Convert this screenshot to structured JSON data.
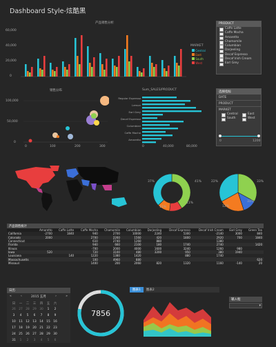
{
  "page": {
    "title": "Dashboard Style-炫酷黑"
  },
  "bar_chart": {
    "title": "产品销售分析",
    "yticks": [
      "60,000",
      "40,000",
      "20,000",
      "0"
    ],
    "legend_title": "MARKET",
    "legend": [
      "Central",
      "East",
      "South",
      "West"
    ],
    "colors": [
      "#27c4d6",
      "#f47b20",
      "#8fd14f",
      "#e83e3e"
    ]
  },
  "slicer_product": {
    "header": "PRODUCT",
    "items": [
      "Caffe Latte",
      "Caffe Mocha",
      "Amaretto",
      "Chamomile",
      "Columbian",
      "Darjeeling",
      "Decaf Espresso",
      "Decaf Irish Cream",
      "Earl Grey"
    ]
  },
  "scatter": {
    "title": "销售分布",
    "yticks": [
      "100,000",
      "50,000",
      "0"
    ],
    "xticks": [
      "0",
      "100",
      "200",
      "300"
    ]
  },
  "hbar": {
    "title": "Sum_SALES/PRODUCT",
    "labels": [
      "Regular Espresso",
      "Lemon",
      "Earl Grey",
      "Decaf Espresso",
      "Columbian",
      "Caffe Mocha",
      "Amaretto"
    ],
    "xticks": [
      "0",
      "40,000",
      "80,000"
    ]
  },
  "slicer_market": {
    "header": "选择指标",
    "date_label": "DATE",
    "product_label": "PRODUCT",
    "market_label": "MARKET",
    "markets": [
      "Central",
      "East",
      "South",
      "West"
    ],
    "slider_min": "0",
    "slider_max": "1200"
  },
  "donut1": {
    "labels": [
      "37%",
      "41%",
      "11%",
      "11%"
    ]
  },
  "donut2": {
    "labels": [
      "22%",
      "33%",
      "12%",
      "33%"
    ]
  },
  "table": {
    "title": "产品销售统计",
    "headers": [
      "",
      "Amaretto",
      "Caffe Latte",
      "Caffe Mocha",
      "Chamomile",
      "Columbian",
      "Darjeeling",
      "Decaf Espresso",
      "Decaf Irish Cream",
      "Earl Grey",
      "Green Tea"
    ],
    "rows": [
      [
        "California",
        "-2700",
        "1840",
        "940",
        "2700",
        "10000",
        "2240",
        "5300",
        "-2140",
        "3000",
        "840"
      ],
      [
        "Colorado",
        "2000",
        "",
        "2700",
        "2260",
        "1560",
        "420",
        "1800",
        "2920",
        "700",
        "1840"
      ],
      [
        "Connecticut",
        "",
        "",
        "610",
        "2740",
        "1260",
        "880",
        "",
        "1380",
        "",
        ""
      ],
      [
        "Florida",
        "",
        "",
        "940",
        "660",
        "2100",
        "180",
        "1740",
        "2740",
        "",
        "1420"
      ],
      [
        "Illinois",
        "",
        "",
        "-700",
        "2000",
        "4000",
        "1600",
        "3240",
        "1260",
        "980",
        ""
      ],
      [
        "Iowa",
        "520",
        "",
        "720",
        "3100",
        "480",
        "3200",
        "950",
        "380",
        "1940",
        ""
      ],
      [
        "Louisiana",
        "",
        "140",
        "1220",
        "1380",
        "1420",
        "",
        "880",
        "1740",
        "",
        ""
      ],
      [
        "Massachusetts",
        "",
        "",
        "100",
        "4960",
        "880",
        "",
        "",
        "",
        "",
        "620"
      ],
      [
        "Missouri",
        "",
        "",
        "1400",
        "200",
        "2060",
        "820",
        "1320",
        "1160",
        "-140",
        "20"
      ]
    ]
  },
  "calendar": {
    "title": "日历",
    "month_label": "2015 五月",
    "nav_prev2": "«",
    "nav_prev": "‹",
    "nav_next": "›",
    "nav_next2": "»",
    "weekdays": [
      "日",
      "一",
      "二",
      "三",
      "四",
      "五",
      "六"
    ],
    "weeks": [
      [
        "26",
        "27",
        "28",
        "29",
        "30",
        "1",
        "2"
      ],
      [
        "3",
        "4",
        "5",
        "6",
        "7",
        "8",
        "9"
      ],
      [
        "10",
        "11",
        "12",
        "13",
        "14",
        "15",
        "16"
      ],
      [
        "17",
        "18",
        "19",
        "20",
        "21",
        "22",
        "23"
      ],
      [
        "24",
        "25",
        "26",
        "27",
        "28",
        "29",
        "30"
      ],
      [
        "31",
        "1",
        "2",
        "3",
        "4",
        "5",
        "6"
      ]
    ]
  },
  "gauge": {
    "value": "7856",
    "fraction": 0.78
  },
  "area_chart": {
    "tab1": "图表1",
    "tab2": "图表2"
  },
  "input_box": {
    "label": "输入框"
  }
}
